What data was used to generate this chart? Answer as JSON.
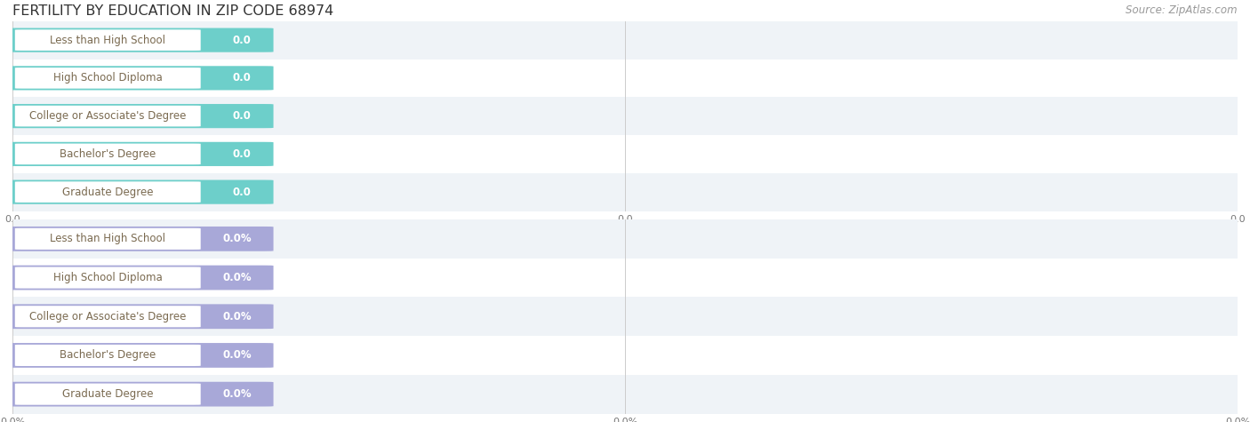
{
  "title": "FERTILITY BY EDUCATION IN ZIP CODE 68974",
  "source_text": "Source: ZipAtlas.com",
  "categories": [
    "Less than High School",
    "High School Diploma",
    "College or Associate's Degree",
    "Bachelor's Degree",
    "Graduate Degree"
  ],
  "values_top": [
    0.0,
    0.0,
    0.0,
    0.0,
    0.0
  ],
  "values_bottom": [
    0.0,
    0.0,
    0.0,
    0.0,
    0.0
  ],
  "bar_color_top": "#6dcfca",
  "bar_color_bottom": "#a8a8d8",
  "label_text_color": "#7a6a50",
  "value_text_color": "#ffffff",
  "row_bg_even": "#eff3f7",
  "row_bg_odd": "#ffffff",
  "background_color": "#ffffff",
  "title_fontsize": 11.5,
  "source_fontsize": 8.5,
  "label_fontsize": 8.5,
  "value_fontsize": 8.5,
  "tick_fontsize": 8,
  "grid_color": "#cccccc",
  "tick_color": "#777777"
}
